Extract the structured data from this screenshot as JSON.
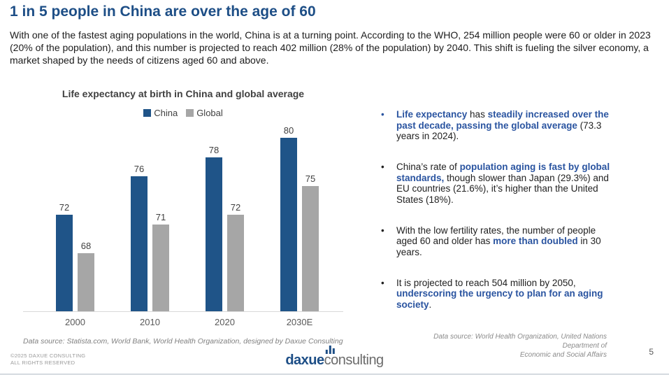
{
  "colors": {
    "title_blue": "#1d4e86",
    "highlight_blue": "#2a54a0",
    "china_bar": "#1f5488",
    "global_bar": "#a6a6a6"
  },
  "header": {
    "title": "1 in 5 people in China are over the age of 60",
    "intro": "With one of the fastest aging populations in the world, China is at a turning point. According to the WHO, 254 million people were 60 or older in 2023 (20% of the population), and this number is projected to reach 402 million (28% of the population) by 2040. This shift is fueling the silver economy, a market shaped by the needs of citizens aged 60 and above."
  },
  "chart": {
    "title": "Life expectancy at birth in China and global average",
    "source": "Data source: Statista.com, World Bank, World Health Organization, designed by Daxue Consulting"
  },
  "chart_data": {
    "type": "bar",
    "title": "Life expectancy at birth in China and global average",
    "categories": [
      "2000",
      "2010",
      "2020",
      "2030E"
    ],
    "series": [
      {
        "name": "China",
        "color": "#1f5488",
        "values": [
          72,
          76,
          78,
          80
        ]
      },
      {
        "name": "Global",
        "color": "#a6a6a6",
        "values": [
          68,
          71,
          72,
          75
        ]
      }
    ],
    "xlabel": "",
    "ylabel": "",
    "ylim": [
      62,
      82
    ],
    "grid": false,
    "legend_position": "top",
    "data_labels": true
  },
  "bullets": [
    {
      "segments": [
        {
          "text": "Life expectancy",
          "highlight": true
        },
        {
          "text": " has ",
          "highlight": false
        },
        {
          "text": "steadily increased over the past decade, passing the global average",
          "highlight": true
        },
        {
          "text": " (73.3 years in 2024).",
          "highlight": false
        }
      ]
    },
    {
      "segments": [
        {
          "text": "China’s rate of ",
          "highlight": false
        },
        {
          "text": "population aging is fast by global standards,",
          "highlight": true
        },
        {
          "text": " though slower than Japan (29.3%) and EU countries (21.6%), it’s higher than the United States (18%).",
          "highlight": false
        }
      ]
    },
    {
      "segments": [
        {
          "text": "With the low fertility rates, the number of people aged 60 and older has ",
          "highlight": false
        },
        {
          "text": "more than doubled",
          "highlight": true
        },
        {
          "text": " in 30 years.",
          "highlight": false
        }
      ]
    },
    {
      "segments": [
        {
          "text": "It is projected to reach 504 million by 2050, ",
          "highlight": false
        },
        {
          "text": "underscoring the urgency to plan for an aging society",
          "highlight": true
        },
        {
          "text": ".",
          "highlight": false
        }
      ]
    }
  ],
  "right_panel": {
    "source_line1": "Data source: World Health Organization, United Nations Department of",
    "source_line2": "Economic and Social Affairs"
  },
  "footer": {
    "copyright_line1": "©2025 DAXUE CONSULTING",
    "copyright_line2": "ALL RIGHTS RESERVED",
    "logo_part1": "daxue",
    "logo_part2": "consulting",
    "page_number": "5"
  }
}
